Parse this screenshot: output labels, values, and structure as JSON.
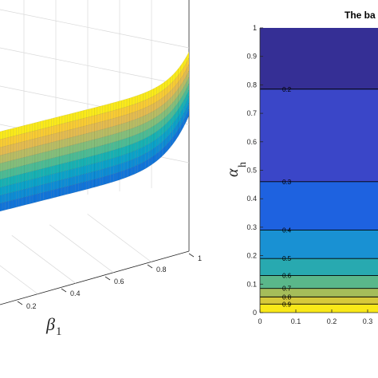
{
  "chart_data": [
    {
      "type": "surface",
      "xlabel": "β",
      "xlabel_sub": "1",
      "x_ticks": [
        "0.2",
        "0.4",
        "0.6",
        "0.8",
        "1"
      ],
      "grid": true,
      "colormap": "parula"
    },
    {
      "type": "contour",
      "title": "The ba",
      "ylabel": "α",
      "ylabel_sub": "h",
      "xlim": [
        0,
        0.35
      ],
      "ylim": [
        0,
        1
      ],
      "x_ticks": [
        "0",
        "0.1",
        "0.2",
        "0.3"
      ],
      "y_ticks": [
        "0",
        "0.1",
        "0.2",
        "0.3",
        "0.4",
        "0.5",
        "0.6",
        "0.7",
        "0.8",
        "0.9",
        "1"
      ],
      "contour_levels": [
        {
          "label": "0.2",
          "y": 0.785
        },
        {
          "label": "0.3",
          "y": 0.46
        },
        {
          "label": "0.4",
          "y": 0.29
        },
        {
          "label": "0.5",
          "y": 0.19
        },
        {
          "label": "0.6",
          "y": 0.13
        },
        {
          "label": "0.7",
          "y": 0.085
        },
        {
          "label": "0.8",
          "y": 0.055
        },
        {
          "label": "0.9",
          "y": 0.03
        }
      ],
      "band_colors": [
        "#f9e818",
        "#d7c93a",
        "#a5bd5a",
        "#5ab78a",
        "#28a9b0",
        "#1991d3",
        "#1e62e0",
        "#3a46c8",
        "#352f95"
      ]
    }
  ]
}
